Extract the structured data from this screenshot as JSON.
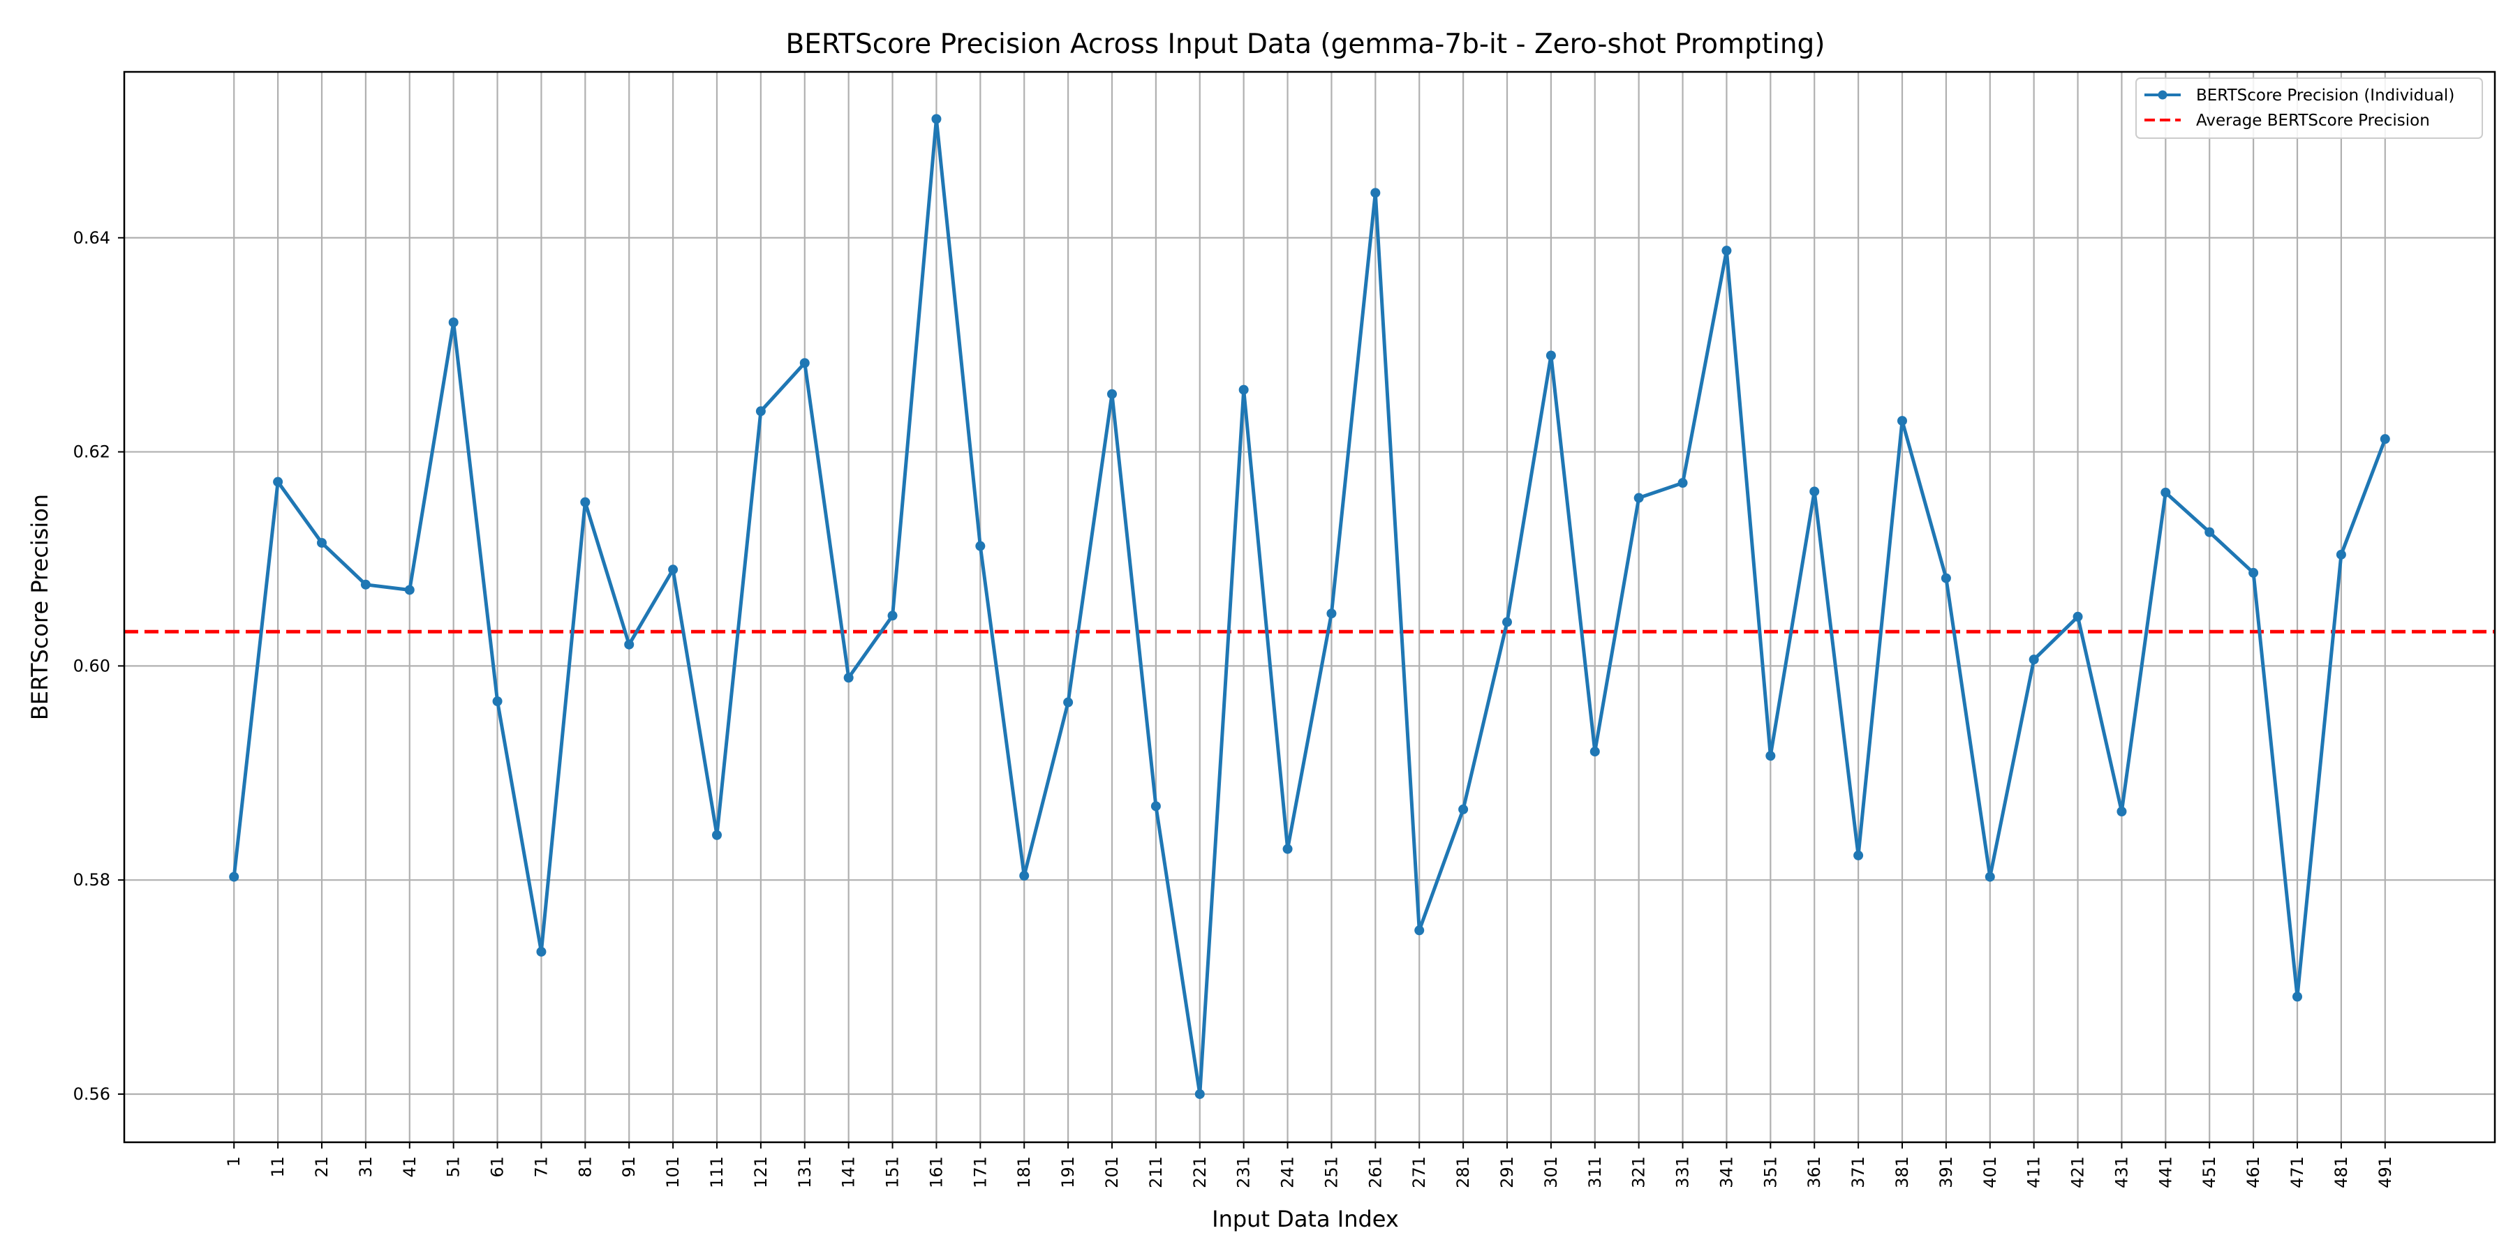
{
  "chart_data": {
    "type": "line",
    "title": "BERTScore Precision Across Input Data (gemma-7b-it - Zero-shot Prompting)",
    "xlabel": "Input Data Index",
    "ylabel": "BERTScore Precision",
    "x": [
      1,
      11,
      21,
      31,
      41,
      51,
      61,
      71,
      81,
      91,
      101,
      111,
      121,
      131,
      141,
      151,
      161,
      171,
      181,
      191,
      201,
      211,
      221,
      231,
      241,
      251,
      261,
      271,
      281,
      291,
      301,
      311,
      321,
      331,
      341,
      351,
      361,
      371,
      381,
      391,
      401,
      411,
      421,
      431,
      441,
      451,
      461,
      471,
      481,
      491
    ],
    "x_ticks": [
      "1",
      "11",
      "21",
      "31",
      "41",
      "51",
      "61",
      "71",
      "81",
      "91",
      "101",
      "111",
      "121",
      "131",
      "141",
      "151",
      "161",
      "171",
      "181",
      "191",
      "201",
      "211",
      "221",
      "231",
      "241",
      "251",
      "261",
      "271",
      "281",
      "291",
      "301",
      "311",
      "321",
      "331",
      "341",
      "351",
      "361",
      "371",
      "381",
      "391",
      "401",
      "411",
      "421",
      "431",
      "441",
      "451",
      "461",
      "471",
      "481",
      "491"
    ],
    "y_ticks": [
      "0.56",
      "0.58",
      "0.60",
      "0.62",
      "0.64"
    ],
    "y_tick_values": [
      0.56,
      0.58,
      0.6,
      0.62,
      0.64
    ],
    "xlim": [
      -24,
      516
    ],
    "ylim": [
      0.5555,
      0.6555
    ],
    "grid": true,
    "legend_position": "top-right",
    "series": [
      {
        "name": "BERTScore Precision (Individual)",
        "color": "#1f77b4",
        "style": "solid-with-markers",
        "values": [
          0.5803,
          0.6172,
          0.6115,
          0.6076,
          0.6071,
          0.6321,
          0.5967,
          0.5733,
          0.6153,
          0.602,
          0.609,
          0.5842,
          0.6238,
          0.6283,
          0.5989,
          0.6047,
          0.6511,
          0.6112,
          0.5804,
          0.5966,
          0.6254,
          0.5869,
          0.56,
          0.6258,
          0.5829,
          0.6049,
          0.6442,
          0.5753,
          0.5866,
          0.6041,
          0.629,
          0.592,
          0.6157,
          0.6171,
          0.6388,
          0.5916,
          0.6163,
          0.5823,
          0.6229,
          0.6082,
          0.5803,
          0.6006,
          0.6046,
          0.5864,
          0.6162,
          0.6125,
          0.6087,
          0.5691,
          0.6104,
          0.6212
        ]
      },
      {
        "name": "Average BERTScore Precision",
        "color": "#ff0000",
        "style": "dashed",
        "value": 0.6032
      }
    ]
  }
}
